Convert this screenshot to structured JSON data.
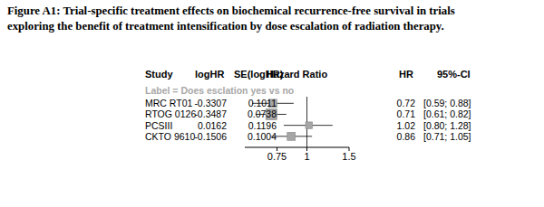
{
  "chart_data": {
    "type": "forest",
    "title": "Figure A1: Trial-specific treatment effects on biochemical recurrence-free survival in trials\nexploring the benefit of treatment intensification by dose escalation of radiation therapy.",
    "columns": [
      "Study",
      "logHR",
      "SE(logHR)",
      "Hazard Ratio",
      "HR",
      "95%-CI"
    ],
    "group_label": "Label = Does esclation yes vs no",
    "categories": [
      "MRC RT01",
      "RTOG 0126",
      "PCSIII",
      "CKTO 9610"
    ],
    "logHR": [
      -0.3307,
      -0.3487,
      0.0162,
      -0.1506
    ],
    "se": [
      0.1011,
      0.0738,
      0.1196,
      0.1004
    ],
    "values": [
      0.72,
      0.71,
      1.02,
      0.86
    ],
    "ci_low": [
      0.59,
      0.61,
      0.8,
      0.71
    ],
    "ci_high": [
      0.88,
      0.82,
      1.28,
      1.05
    ],
    "ci_labels": [
      "[0.59; 0.88]",
      "[0.61; 0.82]",
      "[0.80; 1.28]",
      "[0.71; 1.05]"
    ],
    "null_line": 1,
    "log": "x",
    "xlim": [
      0.55,
      1.5
    ],
    "xticks": [
      0.75,
      1,
      1.5
    ],
    "color": "#a6a6a6",
    "grid": false
  }
}
